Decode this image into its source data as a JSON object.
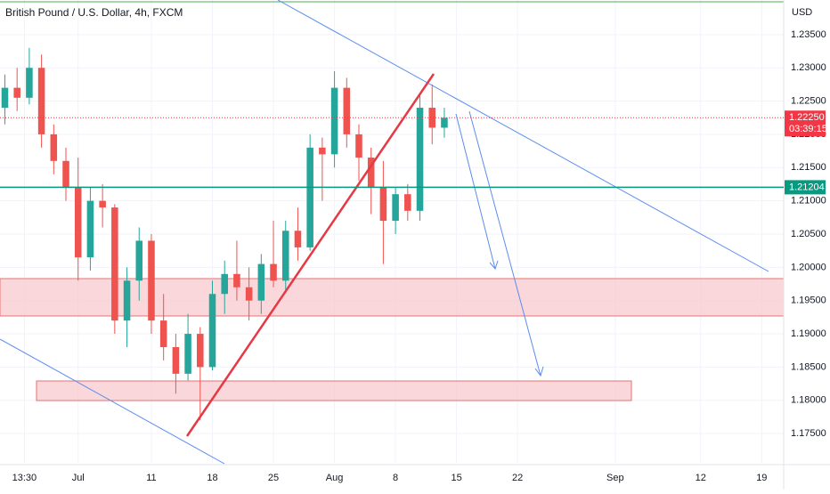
{
  "chart_data": {
    "type": "candlestick",
    "title": "British Pound / U.S. Dollar, 4h, FXCM",
    "currency": "USD",
    "x": [
      -6,
      -5,
      -4,
      -3,
      -2,
      -1,
      0,
      1,
      2,
      3,
      4,
      5,
      6,
      7,
      8,
      9,
      10,
      11,
      12,
      13,
      14,
      15,
      16,
      17,
      18,
      19,
      20,
      21,
      22,
      23,
      24,
      25,
      26,
      27,
      28,
      29,
      30
    ],
    "open": [
      1.224,
      1.227,
      1.2255,
      1.23,
      1.22,
      1.216,
      1.212,
      1.2015,
      1.21,
      1.209,
      1.192,
      1.198,
      1.204,
      1.192,
      1.188,
      1.184,
      1.19,
      1.185,
      1.196,
      1.199,
      1.197,
      1.195,
      1.2005,
      1.198,
      1.2055,
      1.203,
      1.218,
      1.217,
      1.227,
      1.22,
      1.2165,
      1.212,
      1.207,
      1.211,
      1.2085,
      1.224,
      1.221
    ],
    "high": [
      1.229,
      1.23,
      1.233,
      1.232,
      1.2215,
      1.218,
      1.2165,
      1.212,
      1.2125,
      1.2095,
      1.2,
      1.206,
      1.205,
      1.196,
      1.19,
      1.193,
      1.191,
      1.198,
      1.201,
      1.204,
      1.2,
      1.202,
      1.207,
      1.207,
      1.209,
      1.22,
      1.2195,
      1.2295,
      1.2285,
      1.2215,
      1.218,
      1.216,
      1.212,
      1.2125,
      1.226,
      1.2275,
      1.224
    ],
    "low": [
      1.2215,
      1.2235,
      1.2245,
      1.218,
      1.214,
      1.21,
      1.198,
      1.1995,
      1.206,
      1.19,
      1.188,
      1.195,
      1.19,
      1.186,
      1.181,
      1.183,
      1.177,
      1.1845,
      1.193,
      1.195,
      1.192,
      1.193,
      1.197,
      1.1965,
      1.201,
      1.2025,
      1.21,
      1.215,
      1.218,
      1.213,
      1.208,
      1.2005,
      1.205,
      1.207,
      1.207,
      1.2185,
      1.2195
    ],
    "close": [
      1.227,
      1.2255,
      1.23,
      1.22,
      1.216,
      1.212,
      1.2015,
      1.21,
      1.209,
      1.192,
      1.198,
      1.204,
      1.192,
      1.188,
      1.184,
      1.19,
      1.185,
      1.196,
      1.199,
      1.197,
      1.195,
      1.2005,
      1.198,
      1.2055,
      1.203,
      1.218,
      1.217,
      1.227,
      1.22,
      1.2165,
      1.212,
      1.207,
      1.211,
      1.2085,
      1.224,
      1.221,
      1.2225
    ],
    "up_color": "#26a69a",
    "down_color": "#ef5350",
    "xlim": [
      -6.4,
      57.8
    ],
    "xticks": [
      {
        "value": -4.4,
        "label": "13:30"
      },
      {
        "value": 0,
        "label": "Jul"
      },
      {
        "value": 6,
        "label": "11"
      },
      {
        "value": 11,
        "label": "18"
      },
      {
        "value": 16,
        "label": "25"
      },
      {
        "value": 21,
        "label": "Aug"
      },
      {
        "value": 26,
        "label": "8"
      },
      {
        "value": 31,
        "label": "15"
      },
      {
        "value": 36,
        "label": "22"
      },
      {
        "value": 44,
        "label": "Sep"
      },
      {
        "value": 51,
        "label": "12"
      },
      {
        "value": 56,
        "label": "19"
      }
    ],
    "ylim": [
      1.1706,
      1.2402
    ],
    "yticks": [
      {
        "value": 1.175,
        "label": "1.17500"
      },
      {
        "value": 1.18,
        "label": "1.18000"
      },
      {
        "value": 1.185,
        "label": "1.18500"
      },
      {
        "value": 1.19,
        "label": "1.19000"
      },
      {
        "value": 1.195,
        "label": "1.19500"
      },
      {
        "value": 1.2,
        "label": "1.20000"
      },
      {
        "value": 1.205,
        "label": "1.20500"
      },
      {
        "value": 1.21,
        "label": "1.21000"
      },
      {
        "value": 1.215,
        "label": "1.21500"
      },
      {
        "value": 1.22,
        "label": "1.22000"
      },
      {
        "value": 1.225,
        "label": "1.22500"
      },
      {
        "value": 1.23,
        "label": "1.23000"
      },
      {
        "value": 1.235,
        "label": "1.23500"
      }
    ],
    "horizontal_line": {
      "value": 1.21204,
      "color": "#089981"
    },
    "last_price": {
      "value": 1.2225,
      "label": "1.22250",
      "countdown": "03:39:15",
      "color": "#f23645"
    }
  }
}
